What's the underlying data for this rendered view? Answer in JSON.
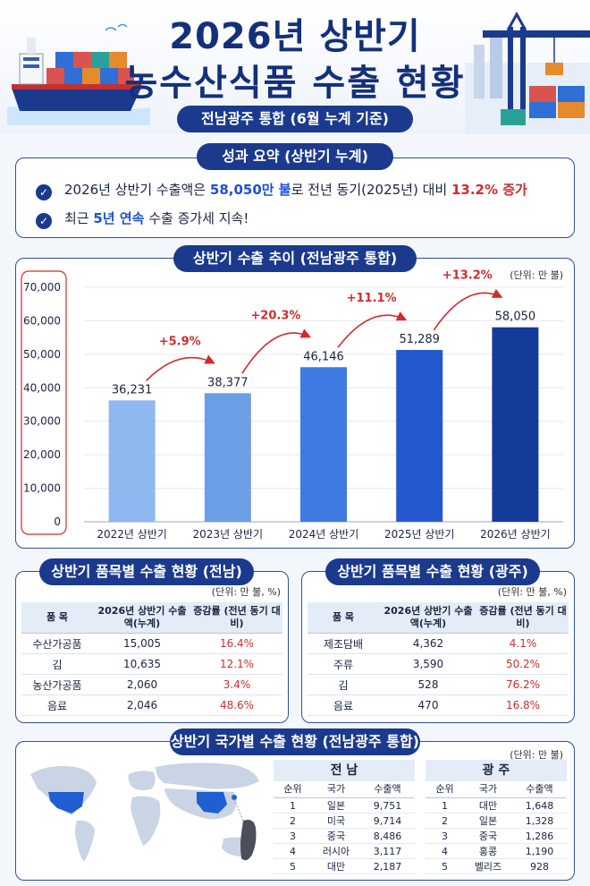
{
  "header": {
    "title_line1": "2026년 상반기",
    "title_line2": "농수산식품 수출 현황",
    "subtitle": "전남광주 통합 (6월 누계 기준)"
  },
  "summary": {
    "title": "성과 요약 (상반기 누계)",
    "line1": {
      "a": "2026년 상반기 수출액은 ",
      "b": "58,050만 불",
      "c": "로 전년 동기(2025년) 대비 ",
      "d": "13.2% 증가"
    },
    "line2": {
      "a": "최근 ",
      "b": "5년 연속",
      "c": " 수출 증가세 지속!"
    }
  },
  "trend": {
    "title": "상반기 수출 추이 (전남광주 통합)",
    "unit": "(단위: 만 불)"
  },
  "chart_data": {
    "type": "bar",
    "title": "상반기 수출 추이 (전남광주 통합)",
    "unit": "(단위: 만 불)",
    "categories": [
      "2022년 상반기",
      "2023년 상반기",
      "2024년 상반기",
      "2025년 상반기",
      "2026년 상반기"
    ],
    "values": [
      36231,
      38377,
      46146,
      51289,
      58050
    ],
    "value_labels": [
      "36,231",
      "38,377",
      "46,146",
      "51,289",
      "58,050"
    ],
    "growth_labels": [
      "+5.9%",
      "+20.3%",
      "+11.1%",
      "+13.2%"
    ],
    "ylim": [
      0,
      70000
    ],
    "yticks": [
      "0",
      "10,000",
      "20,000",
      "30,000",
      "40,000",
      "50,000",
      "60,000",
      "70,000"
    ],
    "grid": true,
    "bar_colors": [
      "#8fb8f0",
      "#6c9ee6",
      "#3f7ae0",
      "#2358cf",
      "#143a9a"
    ],
    "arrow_color": "#d42a2a"
  },
  "jeonnam_items": {
    "title": "상반기 품목별 수출 현황 (전남)",
    "unit": "(단위: 만 불, %)",
    "headers": [
      "품 목",
      "2026년 상반기 수출액(누계)",
      "증감률 (전년 동기 대비)"
    ],
    "rows": [
      [
        "수산가공품",
        "15,005",
        "16.4%"
      ],
      [
        "김",
        "10,635",
        "12.1%"
      ],
      [
        "농산가공품",
        "2,060",
        "3.4%"
      ],
      [
        "음료",
        "2,046",
        "48.6%"
      ]
    ]
  },
  "gwangju_items": {
    "title": "상반기 품목별 수출 현황 (광주)",
    "unit": "(단위: 만 불, %)",
    "headers": [
      "품 목",
      "2026년 상반기 수출액(누계)",
      "증감률 (전년 동기 대비)"
    ],
    "rows": [
      [
        "제조담배",
        "4,362",
        "4.1%"
      ],
      [
        "주류",
        "3,590",
        "50.2%"
      ],
      [
        "김",
        "528",
        "76.2%"
      ],
      [
        "음료",
        "470",
        "16.8%"
      ]
    ]
  },
  "country": {
    "title": "상반기 국가별 수출 현황 (전남광주 통합)",
    "unit": "(단위: 만 불)",
    "jeonnam": {
      "label": "전 남",
      "headers": [
        "순위",
        "국가",
        "수출액"
      ],
      "rows": [
        [
          "1",
          "일본",
          "9,751"
        ],
        [
          "2",
          "미국",
          "9,714"
        ],
        [
          "3",
          "중국",
          "8,486"
        ],
        [
          "4",
          "러시아",
          "3,117"
        ],
        [
          "5",
          "대만",
          "2,187"
        ]
      ]
    },
    "gwangju": {
      "label": "광 주",
      "headers": [
        "순위",
        "국가",
        "수출액"
      ],
      "rows": [
        [
          "1",
          "대만",
          "1,648"
        ],
        [
          "2",
          "일본",
          "1,328"
        ],
        [
          "3",
          "중국",
          "1,286"
        ],
        [
          "4",
          "홍콩",
          "1,190"
        ],
        [
          "5",
          "벨리즈",
          "928"
        ]
      ]
    }
  },
  "colors": {
    "navy": "#1b3a8e",
    "red": "#d42a2a",
    "blue_text": "#1d4fd8"
  }
}
